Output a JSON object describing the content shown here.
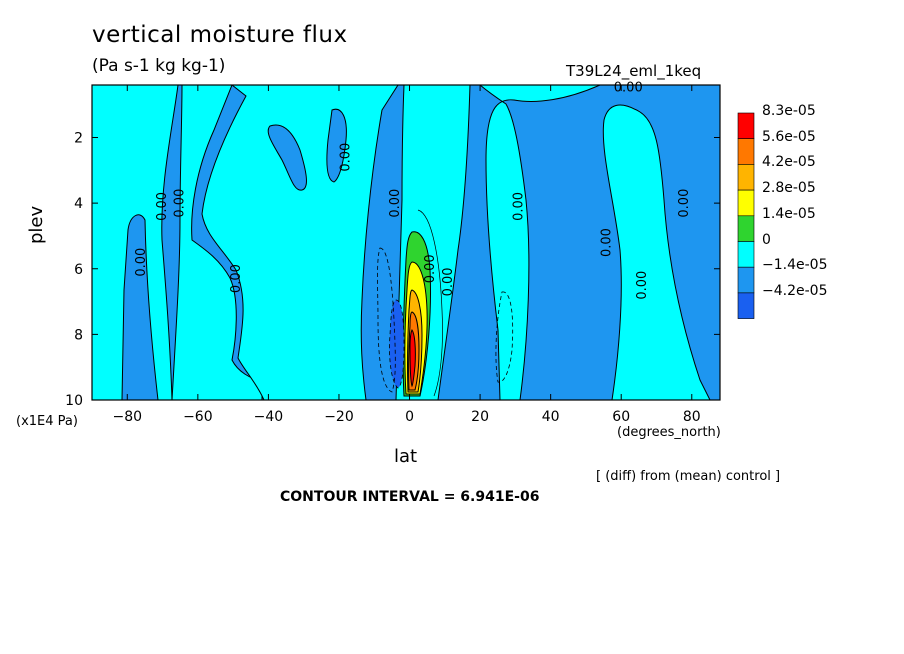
{
  "header": {
    "title": "vertical moisture flux",
    "units": "(Pa s-1 kg kg-1)",
    "run_id": "T39L24_eml_1keq"
  },
  "footer": {
    "contour_interval": "CONTOUR INTERVAL = 6.941E-06",
    "diff_note": "[ (diff) from (mean) control ]"
  },
  "colors": {
    "dark_blue": "#1a60f0",
    "mid_blue": "#1e96f0",
    "cyan": "#00ffff",
    "green": "#2fd42f",
    "yellow": "#ffff00",
    "light_orange": "#ffb400",
    "orange": "#ff7800",
    "red": "#ff0000"
  },
  "chart_data": {
    "type": "contour",
    "title": "vertical moisture flux",
    "subtitle": "(Pa s-1 kg kg-1)",
    "xlabel": "lat",
    "xunit": "(degrees_north)",
    "ylabel": "plev",
    "yunit": "(x1E4 Pa)",
    "xlim": [
      -90,
      88
    ],
    "ylim": [
      10,
      0.4
    ],
    "xticks": [
      -80,
      -60,
      -40,
      -20,
      0,
      20,
      40,
      60,
      80
    ],
    "yticks": [
      2,
      4,
      6,
      8,
      10
    ],
    "contour_interval": 6.941e-06,
    "legend": {
      "placement": "right",
      "levels": [
        "8.3e-05",
        "5.6e-05",
        "4.2e-05",
        "2.8e-05",
        "1.4e-05",
        "0",
        "-1.4e-05",
        "-4.2e-05"
      ],
      "colors": [
        "#ff0000",
        "#ff7800",
        "#ffb400",
        "#ffff00",
        "#2fd42f",
        "#00ffff",
        "#1e96f0",
        "#1a60f0"
      ]
    },
    "contour_labels": [
      {
        "text": "0.00",
        "lat": 62,
        "plev": 0.6
      },
      {
        "text": "0.00",
        "lat": -17,
        "plev": 2.6
      },
      {
        "text": "0.00",
        "lat": -75,
        "plev": 5.8
      },
      {
        "text": "0.00",
        "lat": -69,
        "plev": 4.1
      },
      {
        "text": "0.00",
        "lat": -64,
        "plev": 4.0
      },
      {
        "text": "0.00",
        "lat": -48,
        "plev": 6.3
      },
      {
        "text": "0.00",
        "lat": -3,
        "plev": 4.0
      },
      {
        "text": "0.00",
        "lat": 32,
        "plev": 4.1
      },
      {
        "text": "0.00",
        "lat": 57,
        "plev": 5.2
      },
      {
        "text": "0.00",
        "lat": 67,
        "plev": 6.5
      },
      {
        "text": "0.00",
        "lat": 79,
        "plev": 4.0
      },
      {
        "text": "0.00",
        "lat": 12,
        "plev": 6.4
      },
      {
        "text": "0.00",
        "lat": 7,
        "plev": 6.0
      }
    ]
  }
}
